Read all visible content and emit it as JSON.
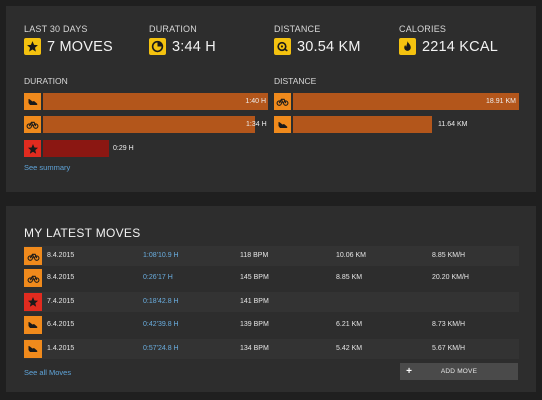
{
  "summary": {
    "stats": [
      {
        "label": "LAST 30 DAYS",
        "value": "7 MOVES",
        "icon": "star-icon"
      },
      {
        "label": "DURATION",
        "value": "3:44 H",
        "icon": "clock-icon"
      },
      {
        "label": "DISTANCE",
        "value": "30.54 KM",
        "icon": "distance-icon"
      },
      {
        "label": "CALORIES",
        "value": "2214 KCAL",
        "icon": "flame-icon"
      }
    ],
    "duration": {
      "title": "DURATION",
      "rows": [
        {
          "activity": "running",
          "icon": "running-shoe-icon",
          "value": "1:40 H",
          "fraction": 1.0
        },
        {
          "activity": "cycling",
          "icon": "bicycle-icon",
          "value": "1:34 H",
          "fraction": 0.94
        },
        {
          "activity": "other",
          "icon": "star-icon",
          "value": "0:29 H",
          "fraction": 0.29
        }
      ]
    },
    "distance": {
      "title": "DISTANCE",
      "rows": [
        {
          "activity": "cycling",
          "icon": "bicycle-icon",
          "value": "18.91 KM",
          "fraction": 1.0
        },
        {
          "activity": "running",
          "icon": "running-shoe-icon",
          "value": "11.64 KM",
          "fraction": 0.615
        }
      ]
    },
    "see_summary": "See summary"
  },
  "moves": {
    "title": "MY LATEST MOVES",
    "rows": [
      {
        "activity": "cycling",
        "icon": "bicycle-icon",
        "date": "8.4.2015",
        "duration": "1:08'10.9 H",
        "heart_rate": "118 BPM",
        "distance": "10.06 KM",
        "speed": "8.85 KM/H"
      },
      {
        "activity": "cycling",
        "icon": "bicycle-icon",
        "date": "8.4.2015",
        "duration": "0:26'17 H",
        "heart_rate": "145 BPM",
        "distance": "8.85 KM",
        "speed": "20.20 KM/H"
      },
      {
        "activity": "other",
        "icon": "star-icon",
        "date": "7.4.2015",
        "duration": "0:18'42.8 H",
        "heart_rate": "141 BPM",
        "distance": "",
        "speed": ""
      },
      {
        "activity": "running",
        "icon": "running-shoe-icon",
        "date": "6.4.2015",
        "duration": "0:42'39.8 H",
        "heart_rate": "139 BPM",
        "distance": "6.21 KM",
        "speed": "8.73 KM/H"
      },
      {
        "activity": "running",
        "icon": "running-shoe-icon",
        "date": "1.4.2015",
        "duration": "0:57'24.8 H",
        "heart_rate": "134 BPM",
        "distance": "5.42 KM",
        "speed": "5.67 KM/H"
      }
    ],
    "see_all": "See all Moves",
    "add_move": "ADD MOVE"
  },
  "colors": {
    "accent_yellow": "#f4c20f",
    "activity_orange": "#f08a1c",
    "bar_orange": "#b3561b",
    "activity_red": "#e12b1f",
    "bar_red": "#8b1712",
    "link_blue": "#5fa4d9"
  }
}
